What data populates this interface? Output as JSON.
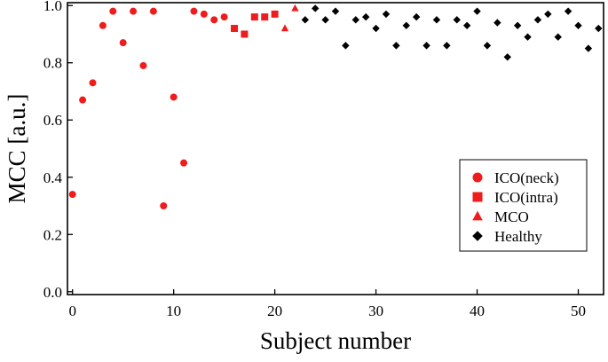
{
  "chart_data": {
    "type": "scatter",
    "xlabel": "Subject number",
    "ylabel": "MCC [a.u.]",
    "xlim": [
      -0.5,
      52.5
    ],
    "ylim": [
      -0.01,
      1.01
    ],
    "x_ticks": [
      0,
      10,
      20,
      30,
      40,
      50
    ],
    "y_ticks": [
      0.0,
      0.2,
      0.4,
      0.6,
      0.8,
      1.0
    ],
    "x_tick_labels": [
      "0",
      "10",
      "20",
      "30",
      "40",
      "50"
    ],
    "y_tick_labels": [
      "0.0",
      "0.2",
      "0.4",
      "0.6",
      "0.8",
      "1.0"
    ],
    "grid": false,
    "legend_position": "bottom-right",
    "series": [
      {
        "name": "ICO(neck)",
        "marker": "circle",
        "color": "#ee1c1c",
        "points": [
          [
            0,
            0.34
          ],
          [
            1,
            0.67
          ],
          [
            2,
            0.73
          ],
          [
            3,
            0.93
          ],
          [
            4,
            0.98
          ],
          [
            5,
            0.87
          ],
          [
            6,
            0.98
          ],
          [
            7,
            0.79
          ],
          [
            8,
            0.98
          ],
          [
            9,
            0.3
          ],
          [
            10,
            0.68
          ],
          [
            11,
            0.45
          ],
          [
            12,
            0.98
          ],
          [
            13,
            0.97
          ],
          [
            14,
            0.95
          ],
          [
            15,
            0.96
          ]
        ]
      },
      {
        "name": "ICO(intra)",
        "marker": "square",
        "color": "#ee1c1c",
        "points": [
          [
            16,
            0.92
          ],
          [
            17,
            0.9
          ],
          [
            18,
            0.96
          ],
          [
            19,
            0.96
          ],
          [
            20,
            0.97
          ]
        ]
      },
      {
        "name": "MCO",
        "marker": "triangle",
        "color": "#ee1c1c",
        "points": [
          [
            21,
            0.92
          ],
          [
            22,
            0.99
          ]
        ]
      },
      {
        "name": "Healthy",
        "marker": "diamond",
        "color": "#000000",
        "points": [
          [
            23,
            0.95
          ],
          [
            24,
            0.99
          ],
          [
            25,
            0.95
          ],
          [
            26,
            0.98
          ],
          [
            27,
            0.86
          ],
          [
            28,
            0.95
          ],
          [
            29,
            0.96
          ],
          [
            30,
            0.92
          ],
          [
            31,
            0.97
          ],
          [
            32,
            0.86
          ],
          [
            33,
            0.93
          ],
          [
            34,
            0.96
          ],
          [
            35,
            0.86
          ],
          [
            36,
            0.95
          ],
          [
            37,
            0.86
          ],
          [
            38,
            0.95
          ],
          [
            39,
            0.93
          ],
          [
            40,
            0.98
          ],
          [
            41,
            0.86
          ],
          [
            42,
            0.94
          ],
          [
            43,
            0.82
          ],
          [
            44,
            0.93
          ],
          [
            45,
            0.89
          ],
          [
            46,
            0.95
          ],
          [
            47,
            0.97
          ],
          [
            48,
            0.89
          ],
          [
            49,
            0.98
          ],
          [
            50,
            0.93
          ],
          [
            51,
            0.85
          ],
          [
            52,
            0.92
          ]
        ]
      }
    ]
  }
}
